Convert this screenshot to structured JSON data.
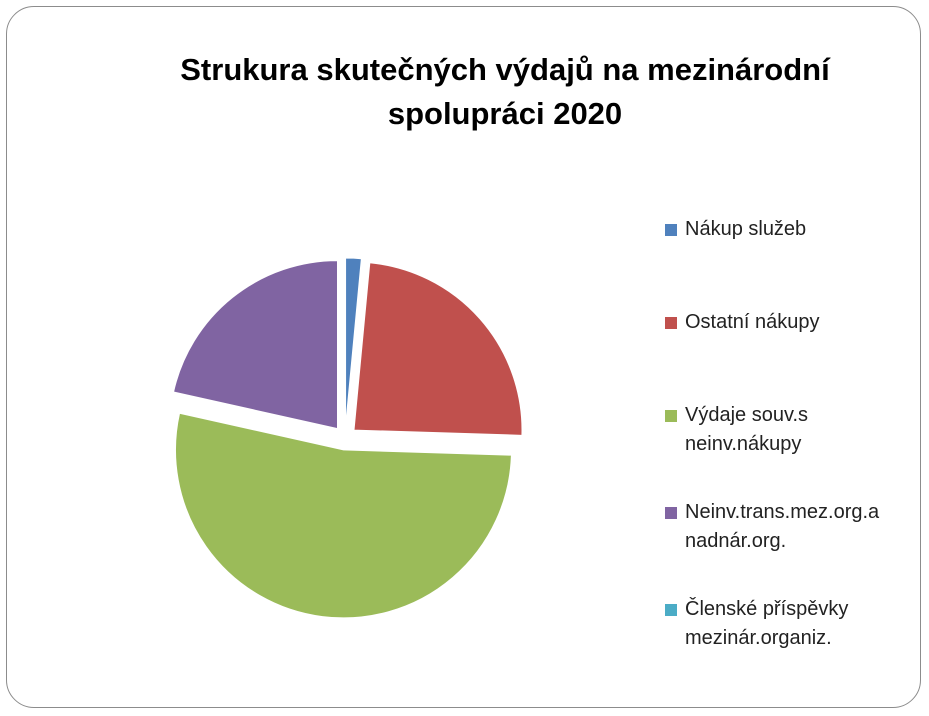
{
  "chart_data": {
    "type": "pie",
    "title": "Strukura skutečných výdajů na mezinárodní spolupráci 2020",
    "categories": [
      "Nákup služeb",
      "Ostatní nákupy",
      "Výdaje souv.s neinv.nákupy",
      "Neinv.trans.mez.org.a nadnár.org.",
      "Členské příspěvky mezinár.organiz."
    ],
    "values": [
      1.5,
      24,
      53,
      21.5,
      0
    ],
    "colors": [
      "#4f81bd",
      "#c0504d",
      "#9bbb59",
      "#8064a2",
      "#4bacc6"
    ],
    "legend": "right"
  }
}
